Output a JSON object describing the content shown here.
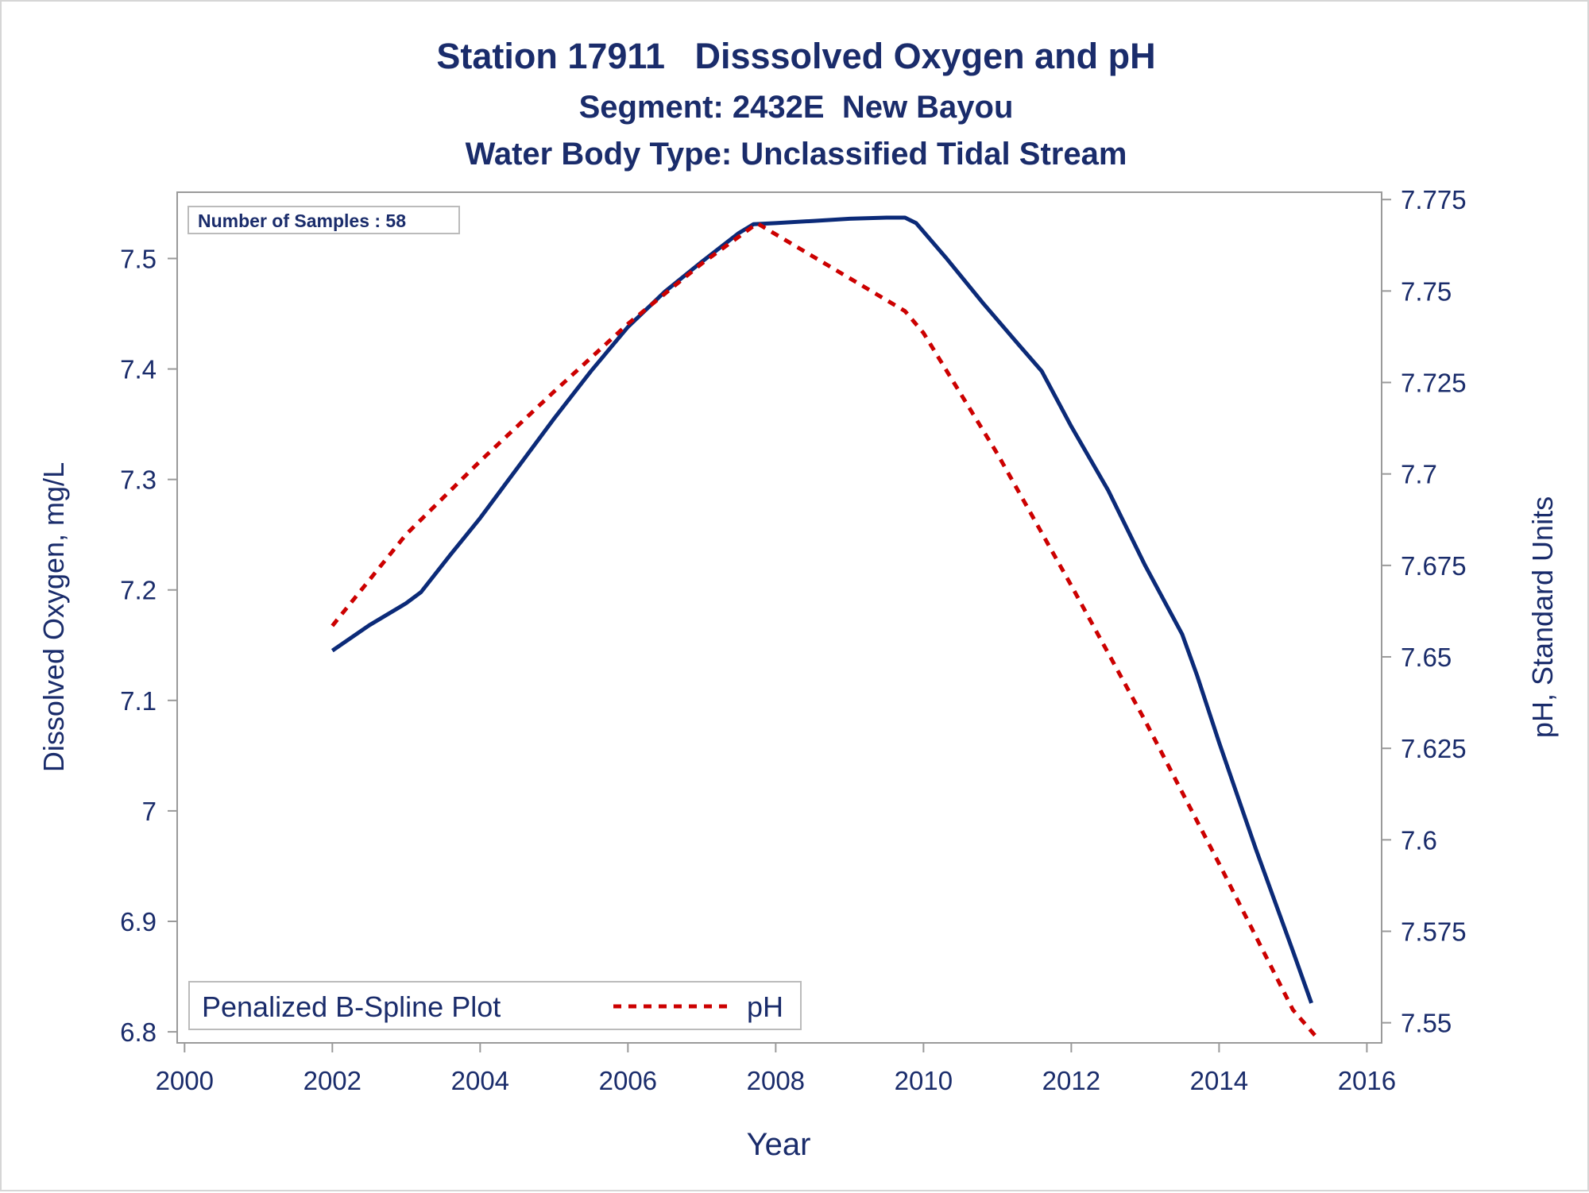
{
  "chart_data": {
    "type": "line",
    "title": "Station 17911   Disssolved Oxygen and pH",
    "subtitle": "Segment: 2432E  New Bayou",
    "subtitle2": "Water Body Type: Unclassified Tidal Stream",
    "xlabel": "Year",
    "ylabel_left": "Dissolved Oxygen, mg/L",
    "ylabel_right": "pH, Standard Units",
    "annotation": "Number of Samples : 58",
    "xlim": [
      1999.9,
      2016.2
    ],
    "ylim_left": [
      6.79,
      7.56
    ],
    "ylim_right": [
      7.5445,
      7.777
    ],
    "x_ticks": [
      2000,
      2002,
      2004,
      2006,
      2008,
      2010,
      2012,
      2014,
      2016
    ],
    "x_tick_labels": [
      "2000",
      "2002",
      "2004",
      "2006",
      "2008",
      "2010",
      "2012",
      "2014",
      "2016"
    ],
    "y_left_ticks": [
      6.8,
      6.9,
      7.0,
      7.1,
      7.2,
      7.3,
      7.4,
      7.5
    ],
    "y_left_tick_labels": [
      "6.8",
      "6.9",
      "7",
      "7.1",
      "7.2",
      "7.3",
      "7.4",
      "7.5"
    ],
    "y_right_ticks": [
      7.55,
      7.575,
      7.6,
      7.625,
      7.65,
      7.675,
      7.7,
      7.725,
      7.75,
      7.775
    ],
    "y_right_tick_labels": [
      "7.55",
      "7.575",
      "7.6",
      "7.625",
      "7.65",
      "7.675",
      "7.7",
      "7.725",
      "7.75",
      "7.775"
    ],
    "grid": false,
    "legend": {
      "position": "bottom-left-inside",
      "title": "Penalized B-Spline Plot",
      "entries": [
        "pH"
      ]
    },
    "colors": {
      "text": "#1a2c6b",
      "do_line": "#0b2a78",
      "ph_line": "#cc0000",
      "axis": "#9a9a9a"
    },
    "series": [
      {
        "axis": "left",
        "style": "solid",
        "x": [
          2002.0,
          2002.5,
          2003.0,
          2003.2,
          2003.6,
          2004.0,
          2004.5,
          2005.0,
          2005.5,
          2006.0,
          2006.5,
          2007.0,
          2007.5,
          2007.7,
          2008.0,
          2008.5,
          2009.0,
          2009.5,
          2009.75,
          2009.9,
          2010.3,
          2010.8,
          2011.3,
          2011.6,
          2012.0,
          2012.5,
          2013.0,
          2013.5,
          2013.7,
          2014.0,
          2014.5,
          2015.0,
          2015.25
        ],
        "y": [
          7.145,
          7.168,
          7.188,
          7.198,
          7.232,
          7.265,
          7.31,
          7.355,
          7.398,
          7.438,
          7.47,
          7.497,
          7.523,
          7.531,
          7.532,
          7.534,
          7.536,
          7.537,
          7.537,
          7.532,
          7.501,
          7.46,
          7.421,
          7.398,
          7.348,
          7.29,
          7.222,
          7.16,
          7.123,
          7.062,
          6.965,
          6.873,
          6.826
        ]
      },
      {
        "name": "pH",
        "axis": "right",
        "style": "dashed",
        "x": [
          2002.0,
          2003.0,
          2004.0,
          2005.0,
          2006.0,
          2007.0,
          2007.75,
          2009.75,
          2010.0,
          2011.0,
          2012.0,
          2013.0,
          2014.0,
          2015.0,
          2015.3
        ],
        "y": [
          7.6585,
          7.6835,
          7.7035,
          7.7225,
          7.741,
          7.7575,
          7.7685,
          7.7445,
          7.7385,
          7.7055,
          7.6695,
          7.6325,
          7.5935,
          7.5535,
          7.5465
        ]
      }
    ]
  }
}
